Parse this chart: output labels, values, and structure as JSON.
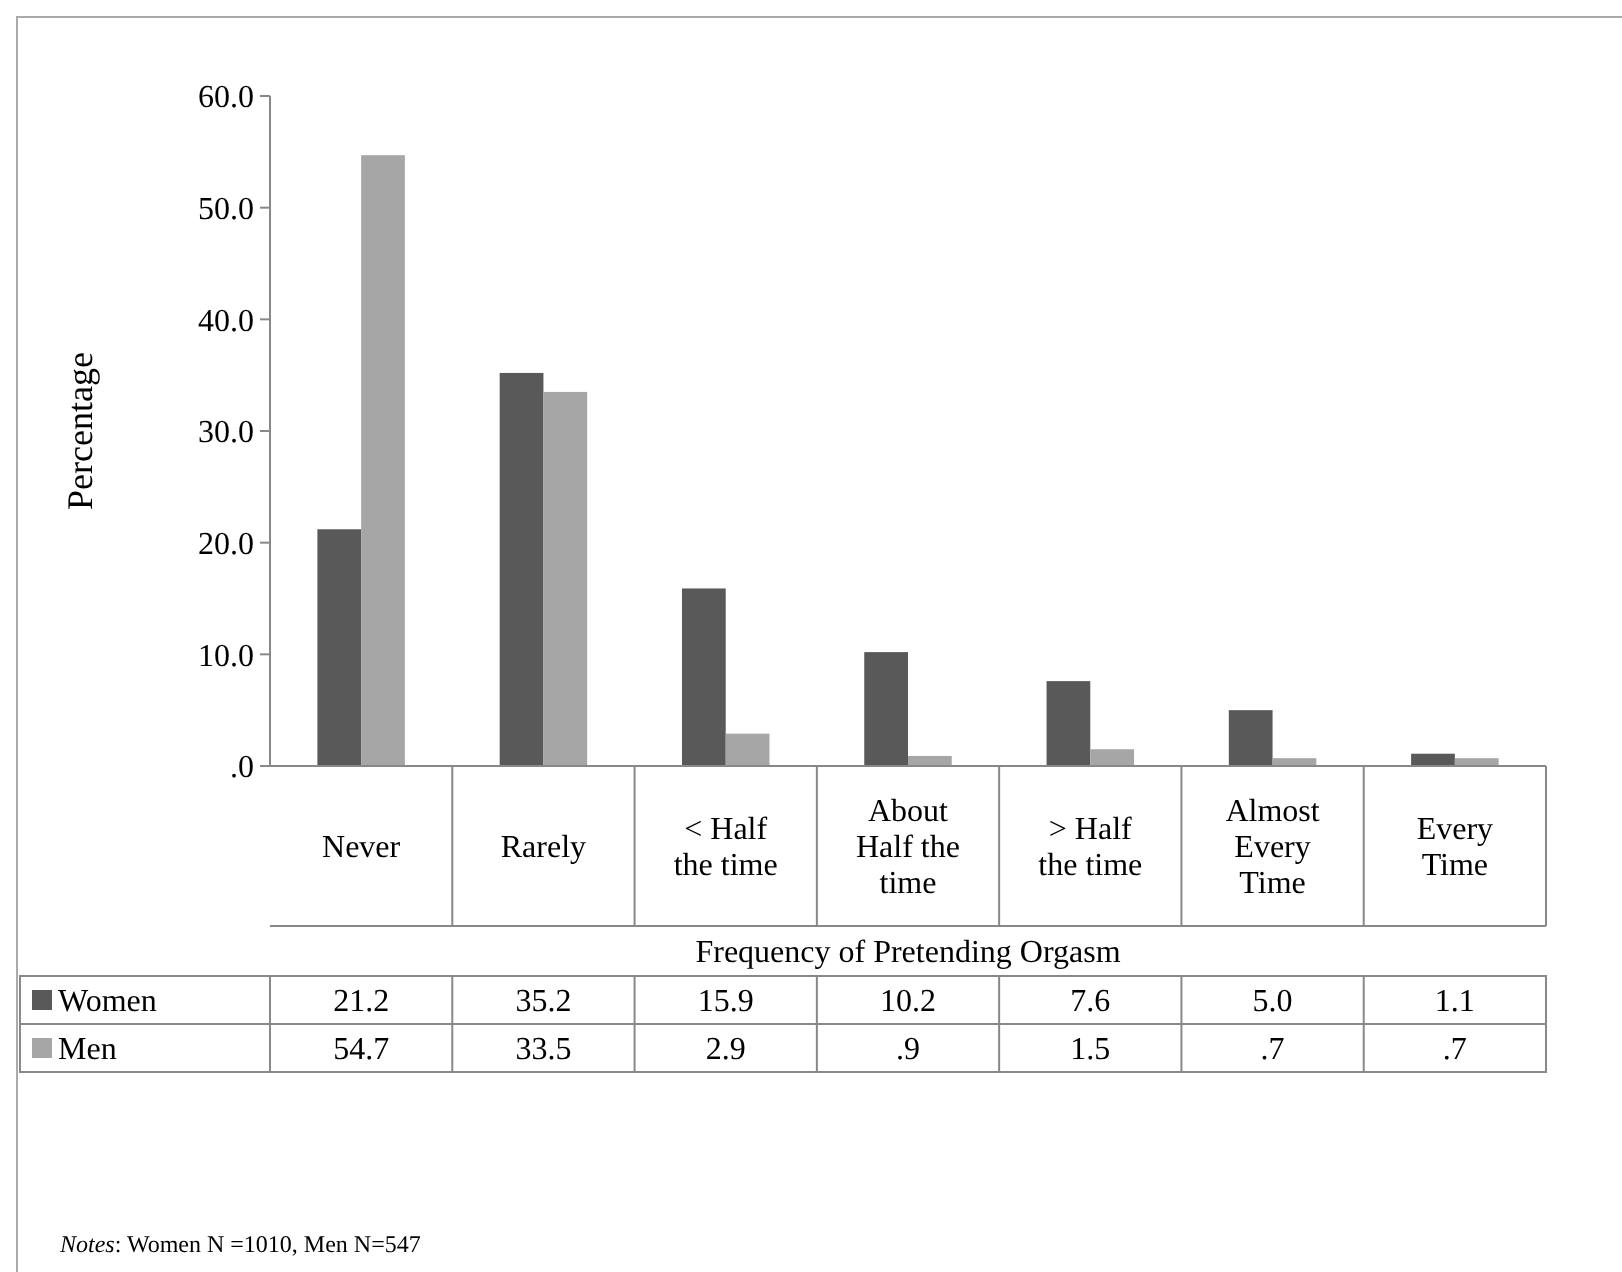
{
  "chart_data": {
    "type": "bar",
    "xlabel": "Frequency of Pretending Orgasm",
    "ylabel": "Percentage",
    "categories": [
      "Never",
      "Rarely",
      "< Half the time",
      "About Half the time",
      "> Half the time",
      "Almost Every Time",
      "Every Time"
    ],
    "series": [
      {
        "name": "Women",
        "color": "#595959",
        "values": [
          21.2,
          35.2,
          15.9,
          10.2,
          7.6,
          5.0,
          1.1
        ],
        "value_labels": [
          "21.2",
          "35.2",
          "15.9",
          "10.2",
          "7.6",
          "5.0",
          "1.1"
        ]
      },
      {
        "name": "Men",
        "color": "#a6a6a6",
        "values": [
          54.7,
          33.5,
          2.9,
          0.9,
          1.5,
          0.7,
          0.7
        ],
        "value_labels": [
          "54.7",
          "33.5",
          "2.9",
          ".9",
          "1.5",
          ".7",
          ".7"
        ]
      }
    ],
    "ylim": [
      0,
      60
    ],
    "yticks": [
      {
        "value": 0,
        "label": ".0"
      },
      {
        "value": 10,
        "label": "10.0"
      },
      {
        "value": 20,
        "label": "20.0"
      },
      {
        "value": 30,
        "label": "30.0"
      },
      {
        "value": 40,
        "label": "40.0"
      },
      {
        "value": 50,
        "label": "50.0"
      },
      {
        "value": 60,
        "label": "60.0"
      }
    ],
    "grid": false,
    "legend": "bottom",
    "annotations": [
      "Notes: Women N =1010, Men N=547"
    ]
  }
}
